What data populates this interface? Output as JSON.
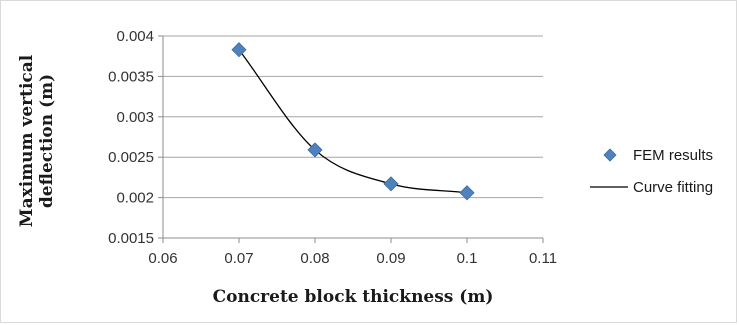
{
  "chart_data": {
    "type": "scatter",
    "title": "",
    "xlabel": "Concrete block thickness (m)",
    "ylabel_lines": [
      "Maximum vertical",
      "deflection (m)"
    ],
    "xlim": [
      0.06,
      0.11
    ],
    "ylim": [
      0.0015,
      0.004
    ],
    "x_ticks": [
      0.06,
      0.07,
      0.08,
      0.09,
      0.1,
      0.11
    ],
    "x_tick_labels": [
      "0.06",
      "0.07",
      "0.08",
      "0.09",
      "0.1",
      "0.11"
    ],
    "y_ticks": [
      0.0015,
      0.002,
      0.0025,
      0.003,
      0.0035,
      0.004
    ],
    "y_tick_labels": [
      "0.0015",
      "0.002",
      "0.0025",
      "0.003",
      "0.0035",
      "0.004"
    ],
    "grid": "horizontal",
    "legend_position": "right",
    "series": [
      {
        "name": "FEM results",
        "kind": "markers",
        "marker": "diamond",
        "color": "#4f81bd",
        "x": [
          0.07,
          0.08,
          0.09,
          0.1
        ],
        "y": [
          0.00383,
          0.00259,
          0.00217,
          0.00206
        ]
      },
      {
        "name": "Curve fitting",
        "kind": "line",
        "color": "#000000",
        "x": [
          0.07,
          0.08,
          0.09,
          0.1
        ],
        "y": [
          0.00383,
          0.00259,
          0.00217,
          0.00206
        ]
      }
    ]
  }
}
